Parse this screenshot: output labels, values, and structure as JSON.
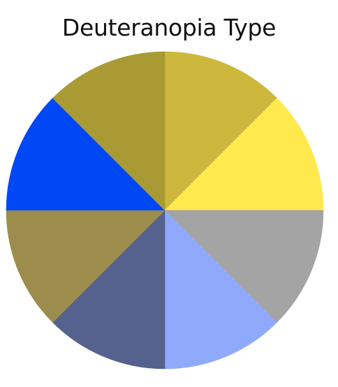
{
  "title": "Deuteranopia Type",
  "wheel": {
    "segments": [
      {
        "name": "segment-1",
        "color": "#CDB83D"
      },
      {
        "name": "segment-2",
        "color": "#FFE94F"
      },
      {
        "name": "segment-3",
        "color": "#A4A4A4"
      },
      {
        "name": "segment-4",
        "color": "#8FAAFA"
      },
      {
        "name": "segment-5",
        "color": "#55628E"
      },
      {
        "name": "segment-6",
        "color": "#9D8D4C"
      },
      {
        "name": "segment-7",
        "color": "#0048F6"
      },
      {
        "name": "segment-8",
        "color": "#A99A33"
      }
    ]
  }
}
